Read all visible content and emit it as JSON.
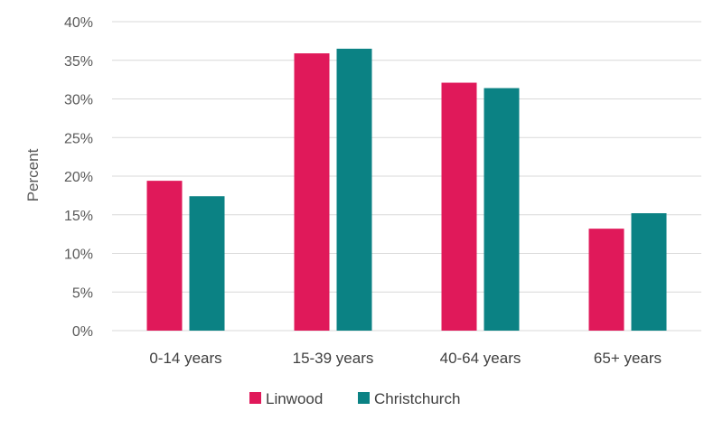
{
  "chart_data": {
    "type": "bar",
    "categories": [
      "0-14 years",
      "15-39 years",
      "40-64 years",
      "65+ years"
    ],
    "series": [
      {
        "name": "Linwood",
        "values": [
          19.4,
          35.9,
          32.1,
          13.2
        ],
        "color": "#e0195a"
      },
      {
        "name": "Christchurch",
        "values": [
          17.4,
          36.5,
          31.4,
          15.2
        ],
        "color": "#0b8284"
      }
    ],
    "ylabel": "Percent",
    "ylim": [
      0,
      40
    ],
    "yticks": [
      "0%",
      "5%",
      "10%",
      "15%",
      "20%",
      "25%",
      "30%",
      "35%",
      "40%"
    ],
    "ytick_values": [
      0,
      5,
      10,
      15,
      20,
      25,
      30,
      35,
      40
    ],
    "grid": true,
    "legend_position": "bottom"
  }
}
